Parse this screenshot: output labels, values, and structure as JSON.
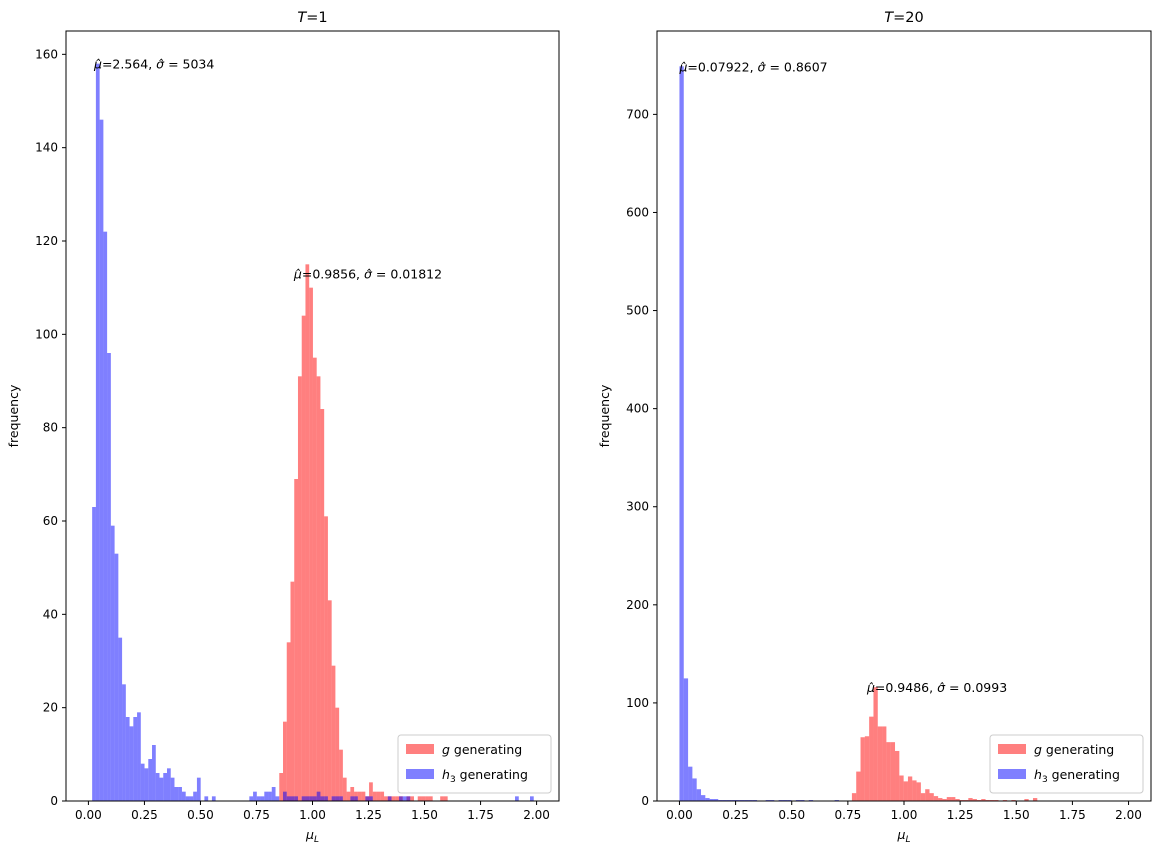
{
  "chart_data": [
    {
      "type": "histogram",
      "title": "T=1",
      "title_parts": {
        "italic": "T",
        "rest": "=1"
      },
      "xlabel": "μL",
      "xlabel_parts": {
        "base": "μ",
        "sub": "L"
      },
      "ylabel": "frequency",
      "xlim": [
        -0.1,
        2.1
      ],
      "ylim": [
        0,
        165
      ],
      "xticks": [
        0.0,
        0.25,
        0.5,
        0.75,
        1.0,
        1.25,
        1.5,
        1.75,
        2.0
      ],
      "xtick_labels": [
        "0.00",
        "0.25",
        "0.50",
        "0.75",
        "1.00",
        "1.25",
        "1.50",
        "1.75",
        "2.00"
      ],
      "yticks": [
        0,
        20,
        40,
        60,
        80,
        100,
        120,
        140,
        160
      ],
      "ytick_labels": [
        "0",
        "20",
        "40",
        "60",
        "80",
        "100",
        "120",
        "140",
        "160"
      ],
      "bin_start": 0.0,
      "bin_width": 0.0167,
      "legend_position": "lower-right",
      "series": [
        {
          "name": "g generating",
          "name_parts": {
            "italic": "g",
            "rest": " generating"
          },
          "color": "#ff0000",
          "alpha": 0.5,
          "counts": [
            0,
            0,
            0,
            0,
            0,
            0,
            0,
            0,
            0,
            0,
            0,
            0,
            0,
            0,
            0,
            0,
            0,
            0,
            0,
            0,
            0,
            0,
            0,
            0,
            0,
            0,
            0,
            0,
            0,
            0,
            0,
            0,
            0,
            0,
            0,
            0,
            0,
            0,
            0,
            0,
            0,
            0,
            0,
            0,
            0,
            0,
            0,
            0,
            0,
            0,
            0,
            6,
            17,
            34,
            47,
            69,
            91,
            104,
            115,
            110,
            95,
            91,
            84,
            61,
            43,
            29,
            20,
            11,
            5,
            2,
            3,
            2,
            2,
            2,
            1,
            4,
            2,
            2,
            2,
            1,
            1,
            1,
            1,
            1,
            0,
            1,
            1,
            0,
            1,
            1,
            1,
            1,
            0,
            0,
            1,
            1,
            0,
            0,
            0,
            0,
            0,
            0,
            0,
            0,
            0
          ]
        },
        {
          "name": "h3 generating",
          "name_parts": {
            "italic": "h",
            "sub": "3",
            "rest": " generating"
          },
          "color": "#0000ff",
          "alpha": 0.5,
          "counts": [
            0,
            63,
            158,
            146,
            122,
            96,
            59,
            53,
            35,
            25,
            18,
            16,
            18,
            19,
            8,
            7,
            9,
            12,
            6,
            5,
            6,
            7,
            5,
            3,
            3,
            2,
            1,
            1,
            2,
            5,
            0,
            1,
            0,
            1,
            0,
            0,
            0,
            0,
            0,
            0,
            0,
            0,
            0,
            1,
            2,
            1,
            1,
            2,
            2,
            3,
            1,
            0,
            2,
            1,
            1,
            1,
            0,
            1,
            1,
            1,
            1,
            2,
            1,
            1,
            0,
            1,
            1,
            1,
            0,
            0,
            1,
            1,
            0,
            0,
            1,
            1,
            0,
            0,
            0,
            0,
            1,
            0,
            0,
            1,
            1,
            1,
            0,
            0,
            0,
            0,
            0,
            0,
            0,
            0,
            0,
            0,
            0,
            0,
            0,
            0,
            0,
            0,
            0,
            0,
            0,
            0,
            0,
            0,
            0,
            0,
            0,
            0,
            0,
            0,
            1,
            0,
            0,
            0,
            1
          ]
        }
      ],
      "annotations": [
        {
          "x": 0.025,
          "y": 158,
          "mu": "2.564",
          "sigma": "5034"
        },
        {
          "x": 0.917,
          "y": 113,
          "mu": "0.9856",
          "sigma": "0.01812"
        }
      ]
    },
    {
      "type": "histogram",
      "title": "T=20",
      "title_parts": {
        "italic": "T",
        "rest": "=20"
      },
      "xlabel": "μL",
      "xlabel_parts": {
        "base": "μ",
        "sub": "L"
      },
      "ylabel": "frequency",
      "xlim": [
        -0.1,
        2.1
      ],
      "ylim": [
        0,
        785
      ],
      "xticks": [
        0.0,
        0.25,
        0.5,
        0.75,
        1.0,
        1.25,
        1.5,
        1.75,
        2.0
      ],
      "xtick_labels": [
        "0.00",
        "0.25",
        "0.50",
        "0.75",
        "1.00",
        "1.25",
        "1.50",
        "1.75",
        "2.00"
      ],
      "yticks": [
        0,
        100,
        200,
        300,
        400,
        500,
        600,
        700
      ],
      "ytick_labels": [
        "0",
        "100",
        "200",
        "300",
        "400",
        "500",
        "600",
        "700"
      ],
      "bin_start": 0.0,
      "bin_width": 0.0192,
      "legend_position": "lower-right",
      "series": [
        {
          "name": "g generating",
          "name_parts": {
            "italic": "g",
            "rest": " generating"
          },
          "color": "#ff0000",
          "alpha": 0.5,
          "counts": [
            0,
            0,
            0,
            0,
            0,
            0,
            0,
            0,
            0,
            0,
            0,
            0,
            0,
            0,
            0,
            0,
            0,
            0,
            0,
            0,
            0,
            0,
            0,
            0,
            0,
            0,
            0,
            0,
            0,
            0,
            0,
            0,
            0,
            0,
            0,
            0,
            0,
            0,
            0,
            0,
            8,
            30,
            65,
            66,
            86,
            116,
            76,
            76,
            60,
            60,
            51,
            26,
            20,
            25,
            21,
            19,
            8,
            12,
            8,
            5,
            3,
            2,
            4,
            4,
            2,
            1,
            1,
            3,
            2,
            1,
            2,
            1,
            1,
            1,
            0,
            1,
            0,
            1,
            0,
            0,
            2,
            0,
            3,
            0,
            0,
            0,
            0,
            0,
            0,
            0,
            0,
            0,
            0,
            0,
            0,
            0,
            0,
            0,
            0,
            0,
            0,
            0
          ]
        },
        {
          "name": "h3 generating",
          "name_parts": {
            "italic": "h",
            "sub": "3",
            "rest": " generating"
          },
          "color": "#0000ff",
          "alpha": 0.5,
          "counts": [
            749,
            125,
            35,
            23,
            12,
            6,
            3,
            2,
            2,
            1,
            1,
            1,
            1,
            1,
            1,
            1,
            1,
            1,
            0,
            0,
            1,
            1,
            0,
            1,
            1,
            1,
            0,
            1,
            1,
            0,
            1,
            0,
            0,
            0,
            0,
            0,
            1,
            0,
            0,
            0,
            0,
            0,
            0,
            0,
            0,
            0,
            0,
            0,
            0,
            0,
            0,
            0,
            0,
            0,
            0,
            0,
            0,
            0,
            0,
            0,
            0,
            0,
            0,
            0,
            0,
            0,
            0,
            0,
            0,
            0,
            0,
            0,
            0,
            0,
            0,
            0,
            0,
            0,
            0,
            0,
            0,
            0,
            0,
            0,
            0,
            0,
            0,
            0,
            0,
            0,
            0,
            0,
            0,
            0,
            0,
            0,
            0,
            0,
            0,
            0,
            0,
            0,
            0,
            0,
            0
          ]
        }
      ],
      "annotations": [
        {
          "x": 0.0,
          "y": 749,
          "mu": "0.07922",
          "sigma": "0.8607"
        },
        {
          "x": 0.835,
          "y": 116,
          "mu": "0.9486",
          "sigma": "0.0993"
        }
      ]
    }
  ]
}
